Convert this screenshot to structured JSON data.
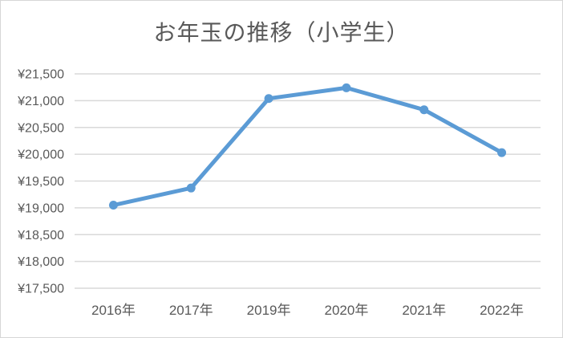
{
  "chart_data": {
    "type": "line",
    "title": "お年玉の推移（小学生）",
    "categories": [
      "2016年",
      "2017年",
      "2019年",
      "2020年",
      "2021年",
      "2022年"
    ],
    "values": [
      19050,
      19370,
      21040,
      21240,
      20830,
      20030
    ],
    "y_tick_labels": [
      "¥17,500",
      "¥18,000",
      "¥18,500",
      "¥19,000",
      "¥19,500",
      "¥20,000",
      "¥20,500",
      "¥21,000",
      "¥21,500"
    ],
    "ylim": [
      17500,
      21500
    ],
    "y_step": 500,
    "xlabel": "",
    "ylabel": "",
    "legend": "none",
    "grid": "horizontal",
    "colors": {
      "line": "#5B9BD5",
      "marker": "#5B9BD5",
      "gridline": "#D9D9D9",
      "text": "#595959",
      "background": "#FFFFFF",
      "border": "#D7D7D7"
    }
  }
}
